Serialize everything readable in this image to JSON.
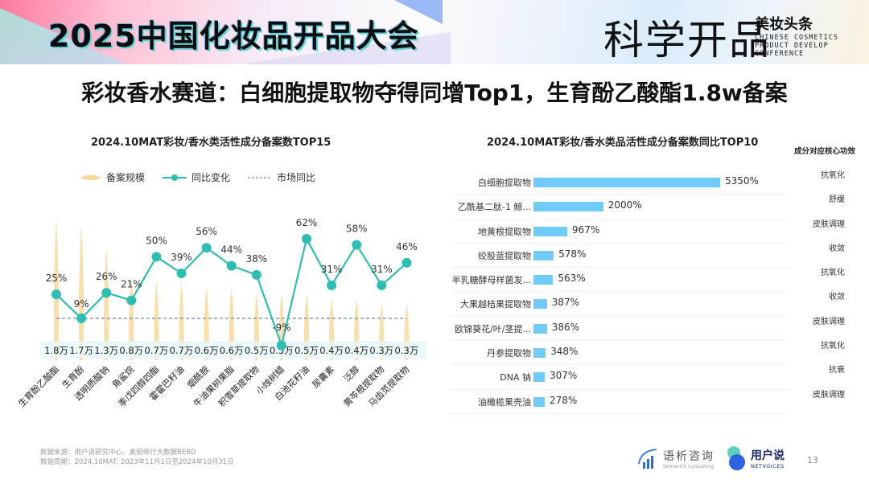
{
  "banner": {
    "title": "2025中国化妆品开品大会",
    "brand_big": "科学开品",
    "brand_cn": "美妆头条",
    "brand_en": [
      "CHINESE COSMETICS",
      "PRODUCT DEVELOP",
      "CONFERENCE"
    ]
  },
  "headline": "彩妆香水赛道：白细胞提取物夺得同增Top1，生育酚乙酸酯1.8w备案",
  "left_chart": {
    "title": "2024.10MAT彩妆/香水类活性成分备案数TOP15",
    "legend": [
      "备案规模",
      "同比变化",
      "市场同比"
    ]
  },
  "right_chart": {
    "title": "2024.10MAT彩妆/香水类品活性成分备案数同比TOP10",
    "effects_title": "成分对应核心功效",
    "effects": [
      "抗氧化",
      "舒缓",
      "皮肤调理",
      "收敛",
      "抗氧化",
      "收敛",
      "皮肤调理",
      "抗氧化",
      "抗衰",
      "皮肤调理"
    ]
  },
  "chart_data": [
    {
      "type": "line",
      "title": "2024.10MAT彩妆/香水类活性成分备案数TOP15",
      "categories": [
        "生育酚乙酸酯",
        "生育酚",
        "透明质酸钠",
        "角鲨烷",
        "季戊四醇四酯",
        "霍霍巴籽油",
        "烟酰胺",
        "牛油果树果脂",
        "积雪草提取物",
        "小烛树蜡",
        "白池花籽油",
        "尿囊素",
        "泛醇",
        "黄芩根提取物",
        "马齿苋提取物"
      ],
      "series": [
        {
          "name": "备案规模",
          "kind": "spike",
          "values": [
            1.8,
            1.7,
            1.3,
            0.8,
            0.7,
            0.7,
            0.6,
            0.6,
            0.5,
            0.5,
            0.5,
            0.4,
            0.4,
            0.3,
            0.3
          ],
          "labels": [
            "1.8万",
            "1.7万",
            "1.3万",
            "0.8万",
            "0.7万",
            "0.7万",
            "0.6万",
            "0.6万",
            "0.5万",
            "0.5万",
            "0.5万",
            "0.4万",
            "0.4万",
            "0.3万",
            "0.3万"
          ]
        },
        {
          "name": "同比变化",
          "kind": "line",
          "values": [
            25,
            9,
            26,
            21,
            50,
            39,
            56,
            44,
            38,
            -9,
            62,
            31,
            58,
            31,
            46
          ],
          "labels": [
            "25%",
            "9%",
            "26%",
            "21%",
            "50%",
            "39%",
            "56%",
            "44%",
            "38%",
            "-9%",
            "62%",
            "31%",
            "58%",
            "31%",
            "46%"
          ]
        }
      ],
      "reference_line": {
        "name": "市场同比",
        "value": 10
      },
      "colors": {
        "spike": "#f7d9a0",
        "line": "#2fbcb2",
        "reference": "#5a6a9a",
        "value_band": "#e6f6f9"
      }
    },
    {
      "type": "bar",
      "orientation": "horizontal",
      "title": "2024.10MAT彩妆/香水类品活性成分备案数同比TOP10",
      "categories": [
        "白细胞提取物",
        "乙酰基二肽-1 鲸...",
        "地黄根提取物",
        "绞股蓝提取物",
        "半乳糖酵母样菌发...",
        "大果越桔果提取物",
        "欧锦葵花/叶/茎提...",
        "丹参提取物",
        "DNA 钠",
        "油橄榄果壳油"
      ],
      "values": [
        5350,
        2000,
        967,
        578,
        563,
        387,
        386,
        348,
        307,
        278
      ],
      "labels": [
        "5350%",
        "2000%",
        "967%",
        "578%",
        "563%",
        "387%",
        "386%",
        "348%",
        "307%",
        "278%"
      ],
      "colors": {
        "bar": "#6fcbf7"
      }
    }
  ],
  "footer": {
    "source": "数据来源：用户说研究中心、美丽修行大数据BEBD",
    "period": "数据周期：2024.10MAT: 2023年11月1日至2024年10月31日"
  },
  "logos": {
    "semantix_cn": "语析咨询",
    "semantix_en": "SemantiX Consulting",
    "netvoices_cn": "用户说",
    "netvoices_en": "NETVOICES"
  },
  "page_number": "13"
}
